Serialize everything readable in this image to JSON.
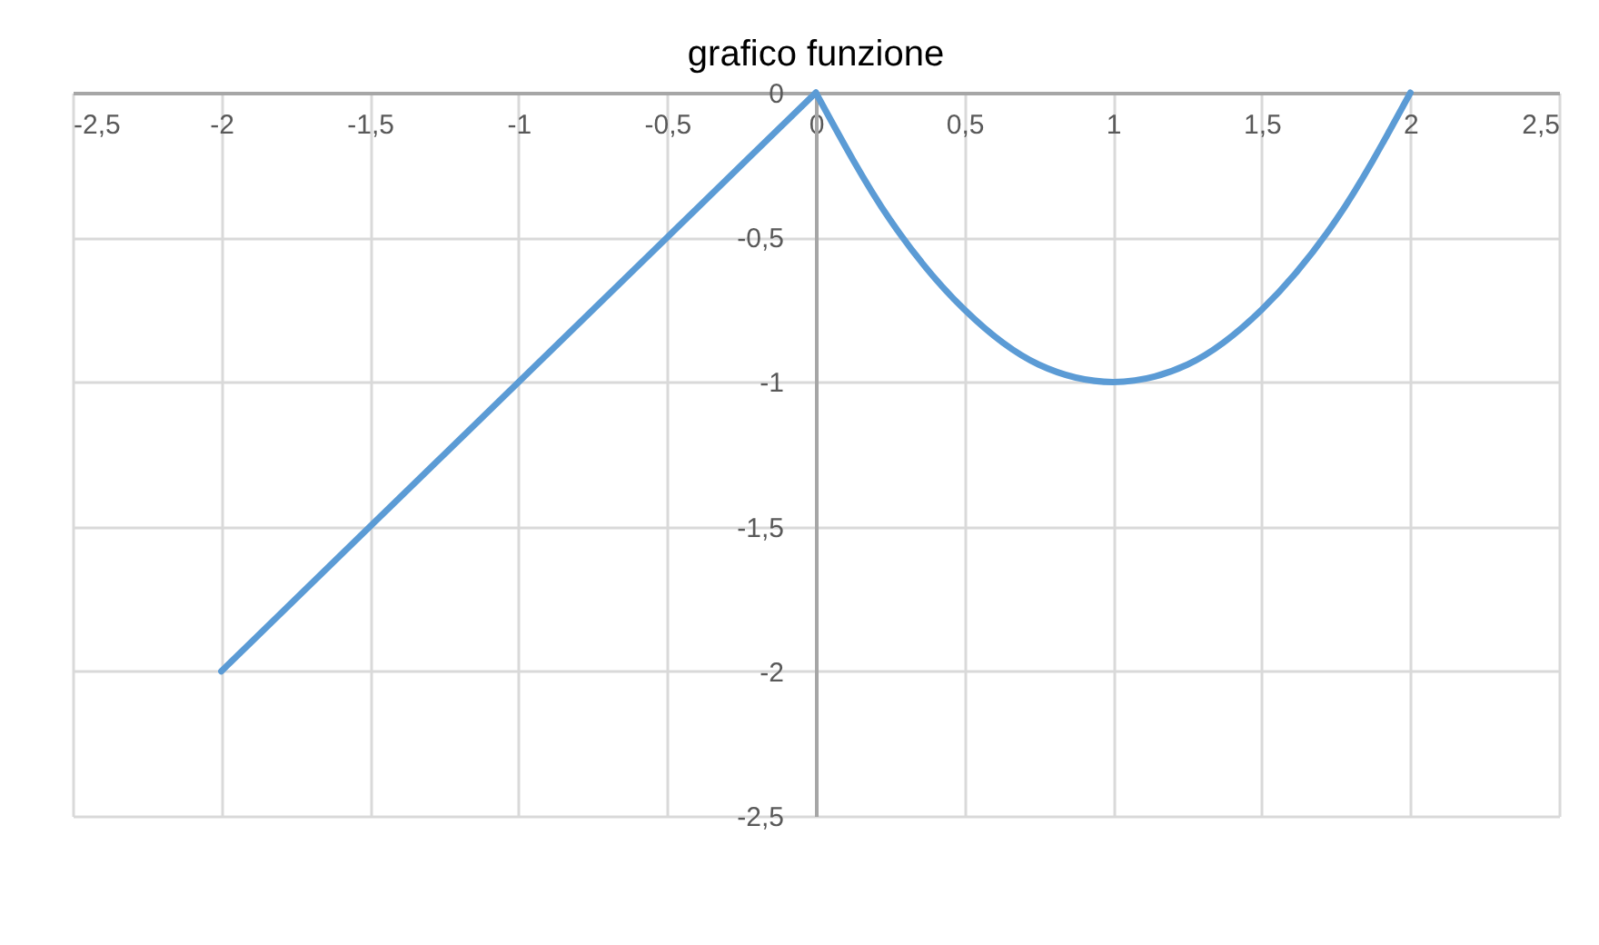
{
  "chart_data": {
    "type": "line",
    "title": "grafico funzione",
    "series": [
      {
        "color": "#5b9bd5",
        "x": [
          -2,
          -1.5,
          -1,
          -0.5,
          0
        ],
        "values": [
          -2,
          -1.5,
          -1,
          -0.5,
          0
        ]
      },
      {
        "color": "#5b9bd5",
        "x": [
          0,
          0.25,
          0.5,
          0.75,
          1,
          1.25,
          1.5,
          1.75,
          2
        ],
        "values": [
          0,
          -0.44,
          -0.75,
          -0.94,
          -1,
          -0.94,
          -0.75,
          -0.44,
          0
        ]
      }
    ],
    "xlim": [
      -2.5,
      2.5
    ],
    "xticks": [
      {
        "value": -2.5,
        "label": "-2,5"
      },
      -2,
      {
        "value": -1.5,
        "label": "-1,5"
      },
      -1,
      {
        "value": -0.5,
        "label": "-0,5"
      },
      0,
      {
        "value": 0.5,
        "label": "0,5"
      },
      1,
      {
        "value": 1.5,
        "label": "1,5"
      },
      2,
      {
        "value": 2.5,
        "label": "2,5"
      }
    ],
    "ylim": [
      -2.5,
      0
    ],
    "yticks": [
      {
        "value": -2.5,
        "label": "-2,5"
      },
      -2,
      {
        "value": -1.5,
        "label": "-1,5"
      },
      -1,
      {
        "value": -0.5,
        "label": "-0,5"
      },
      0
    ],
    "grid": true,
    "marker": "none",
    "line_style": "solid"
  }
}
